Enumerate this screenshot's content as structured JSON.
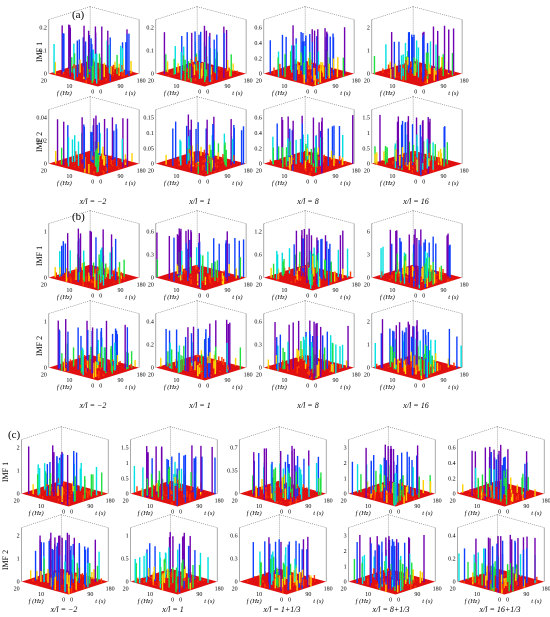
{
  "panels": [
    {
      "label": "(a)",
      "row_labels": [
        "IMF 1",
        "IMF 2"
      ],
      "columns": [
        "x/l = −2",
        "x/l = 1",
        "x/l = 8",
        "x/l = 16"
      ],
      "ticks": [
        [
          [
            "0",
            "0.1",
            "0.2"
          ],
          [
            "0",
            "0.1",
            "0.2"
          ],
          [
            "0",
            "0.2",
            "0.4",
            "0.6"
          ],
          [
            "0",
            "1",
            "2"
          ]
        ],
        [
          [
            "0",
            "0.02",
            "0.04"
          ],
          [
            "0",
            "0.05",
            "0.1",
            "0.15"
          ],
          [
            "0",
            "0.2",
            "0.4",
            "0.6"
          ],
          [
            "0",
            "0.5",
            "1",
            "1.5"
          ]
        ]
      ]
    },
    {
      "label": "(b)",
      "row_labels": [
        "IMF 1",
        "IMF 2"
      ],
      "columns": [
        "x/l = −2",
        "x/l = 1",
        "x/l = 8",
        "x/l = 16"
      ],
      "ticks": [
        [
          [
            "0",
            "1"
          ],
          [
            "0",
            "0.3",
            "0.6"
          ],
          [
            "0",
            "0.6",
            "1.2"
          ],
          [
            "0",
            "3",
            "6"
          ]
        ],
        [
          [
            "0",
            "1"
          ],
          [
            "0",
            "0.2",
            "0.4"
          ],
          [
            "0",
            "0.3",
            "0.6"
          ],
          [
            "0",
            "1",
            "2"
          ]
        ]
      ]
    },
    {
      "label": "(c)",
      "row_labels": [
        "IMF 1",
        "IMF 2"
      ],
      "columns": [
        "x/l = −2",
        "x/l = 1",
        "x/l = 1+1/3",
        "x/l = 8+1/3",
        "x/l = 16+1/3"
      ],
      "ticks": [
        [
          [
            "0",
            "1",
            "2"
          ],
          [
            "0",
            "0.5",
            "1",
            "1.5"
          ],
          [
            "0",
            "0.35",
            "0.7"
          ],
          [
            "0",
            "1",
            "2",
            "3"
          ],
          [
            "0",
            "0.2",
            "0.4",
            "0.6"
          ]
        ],
        [
          [
            "0",
            "1",
            "2"
          ],
          [
            "0",
            "0.5",
            "1"
          ],
          [
            "0",
            "0.3",
            "0.6"
          ],
          [
            "0",
            "1",
            "2",
            "3"
          ],
          [
            "0",
            "0.2",
            "0.4"
          ]
        ]
      ]
    }
  ],
  "axis_ticks": {
    "freq_far": "20",
    "freq_mid": "10",
    "freq_zero": "0",
    "time_zero": "0",
    "time_mid": "90",
    "time_far": "180"
  },
  "axis_labels": {
    "freq": "f (Hz)",
    "time": "t (s)"
  },
  "colors": {
    "floor": "#e01010",
    "low": "#ff3b00",
    "mid_low": "#ffd200",
    "mid": "#20e040",
    "mid_high": "#00e0e0",
    "high": "#1040ff",
    "peak": "#7000b0"
  }
}
